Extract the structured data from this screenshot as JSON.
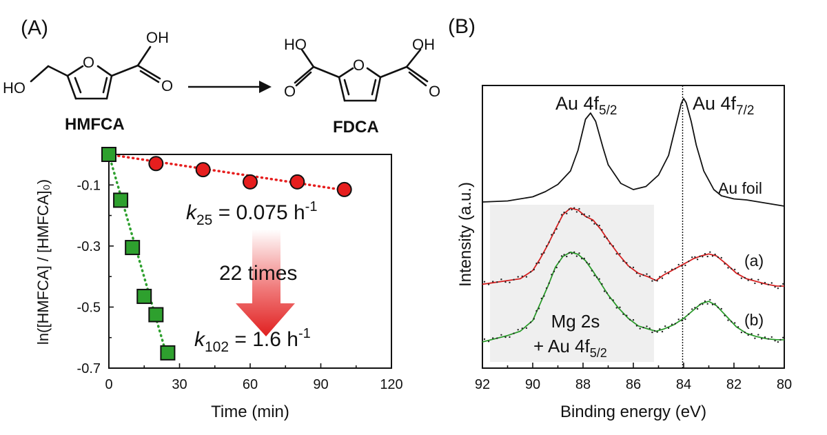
{
  "panels": {
    "a_label": "(A)",
    "b_label": "(B)"
  },
  "scheme": {
    "reactant": {
      "name": "HMFCA",
      "hydroxymethyl_label": "HO",
      "acid_oh_label": "OH",
      "carbonyl_label": "O",
      "ring_o_label": "O"
    },
    "product": {
      "name": "FDCA",
      "left_oh_label": "HO",
      "right_oh_label": "OH",
      "carbonyl_label": "O",
      "ring_o_label": "O"
    }
  },
  "chart_data": [
    {
      "type": "scatter",
      "panel": "A",
      "xlabel": "Time (min)",
      "ylabel": "ln([HMFCA] / [HMFCA]₀)",
      "xlim": [
        0,
        120
      ],
      "ylim": [
        -0.7,
        0.0
      ],
      "xticks": [
        0,
        30,
        60,
        90,
        120
      ],
      "yticks": [
        -0.1,
        -0.3,
        -0.5,
        -0.7
      ],
      "xtick_labels": [
        "0",
        "30",
        "60",
        "90",
        "120"
      ],
      "ytick_labels": [
        "-0.1",
        "-0.3",
        "-0.5",
        "-0.7"
      ],
      "series": [
        {
          "marker": "circle",
          "color": "#e61e1e",
          "x": [
            0,
            20,
            40,
            60,
            80,
            100
          ],
          "y": [
            0.0,
            -0.03,
            -0.05,
            -0.09,
            -0.09,
            -0.115
          ],
          "fit": {
            "x": [
              0,
              100
            ],
            "y": [
              0.0,
              -0.117
            ],
            "style": "dotted"
          }
        },
        {
          "marker": "square",
          "color": "#2ea02e",
          "x": [
            0,
            5,
            10,
            15,
            20,
            25
          ],
          "y": [
            0.0,
            -0.15,
            -0.305,
            -0.465,
            -0.525,
            -0.65
          ],
          "fit": {
            "x": [
              0,
              25
            ],
            "y": [
              0.0,
              -0.67
            ],
            "style": "dotted"
          }
        }
      ],
      "annotations": {
        "k25_symbol": "k",
        "k25_sub": "25",
        "k25_value": " = 0.075 h",
        "k25_exp": "-1",
        "ratio_text": "22 times",
        "k102_symbol": "k",
        "k102_sub": "102",
        "k102_value": " = 1.6 h",
        "k102_exp": "-1"
      }
    },
    {
      "type": "line",
      "panel": "B",
      "xlabel": "Binding energy (eV)",
      "ylabel": "Intensity (a.u.)",
      "xlim": [
        92,
        80
      ],
      "xticks": [
        92,
        90,
        88,
        86,
        84,
        82,
        80
      ],
      "xtick_labels": [
        "92",
        "90",
        "88",
        "86",
        "84",
        "82",
        "80"
      ],
      "reference_line_x": 84.0,
      "shaded_region_x": [
        91.5,
        85.1
      ],
      "shaded_label_line1": "Mg 2s",
      "shaded_label_line2": "+ Au 4f",
      "shaded_label_sub": "5/2",
      "peak_labels": [
        {
          "text": "Au 4f",
          "sub": "5/2"
        },
        {
          "text": "Au 4f",
          "sub": "7/2"
        }
      ],
      "series": [
        {
          "name": "Au foil",
          "color": "#111111",
          "x": [
            92,
            91,
            90,
            89.5,
            89,
            88.5,
            88.2,
            87.9,
            87.7,
            87.5,
            87.2,
            87,
            86.5,
            86,
            85.5,
            85,
            84.6,
            84.3,
            84.1,
            84.0,
            83.9,
            83.7,
            83.5,
            83.2,
            82.8,
            82.5,
            82,
            81.5,
            81,
            80.5,
            80
          ],
          "y": [
            0.0,
            0.01,
            0.05,
            0.1,
            0.17,
            0.3,
            0.5,
            0.8,
            0.86,
            0.78,
            0.52,
            0.36,
            0.18,
            0.12,
            0.15,
            0.26,
            0.45,
            0.75,
            0.95,
            1.0,
            0.96,
            0.78,
            0.55,
            0.3,
            0.12,
            0.06,
            0.03,
            0.02,
            0.0,
            -0.02,
            -0.04
          ]
        },
        {
          "name": "(a)",
          "color": "#d42020",
          "x": [
            92,
            91.5,
            91,
            90.5,
            90,
            89.7,
            89.4,
            89.1,
            88.8,
            88.5,
            88.2,
            87.9,
            87.6,
            87.3,
            87,
            86.6,
            86.2,
            85.8,
            85.4,
            85.1,
            84.8,
            84.4,
            84.0,
            83.6,
            83.3,
            83.0,
            82.7,
            82.3,
            81.9,
            81.5,
            81.1,
            80.7,
            80.3,
            80
          ],
          "y": [
            0.02,
            0.04,
            0.06,
            0.08,
            0.17,
            0.3,
            0.45,
            0.62,
            0.78,
            0.85,
            0.83,
            0.76,
            0.72,
            0.62,
            0.5,
            0.35,
            0.22,
            0.14,
            0.1,
            0.06,
            0.12,
            0.18,
            0.24,
            0.3,
            0.33,
            0.35,
            0.33,
            0.24,
            0.14,
            0.08,
            0.05,
            0.02,
            0.0,
            0.0
          ]
        },
        {
          "name": "(b)",
          "color": "#2a9a2a",
          "x": [
            92,
            91.5,
            91,
            90.5,
            90,
            89.7,
            89.4,
            89.1,
            88.8,
            88.5,
            88.2,
            87.9,
            87.6,
            87.3,
            87,
            86.6,
            86.2,
            85.8,
            85.4,
            85.1,
            84.8,
            84.4,
            84.0,
            83.6,
            83.3,
            83.0,
            82.7,
            82.3,
            81.9,
            81.5,
            81.1,
            80.7,
            80.3,
            80
          ],
          "y": [
            0.0,
            0.03,
            0.06,
            0.1,
            0.2,
            0.36,
            0.52,
            0.7,
            0.8,
            0.84,
            0.82,
            0.76,
            0.66,
            0.55,
            0.44,
            0.32,
            0.22,
            0.15,
            0.12,
            0.1,
            0.12,
            0.16,
            0.22,
            0.3,
            0.36,
            0.38,
            0.34,
            0.24,
            0.14,
            0.08,
            0.05,
            0.03,
            0.02,
            0.02
          ]
        }
      ]
    }
  ]
}
